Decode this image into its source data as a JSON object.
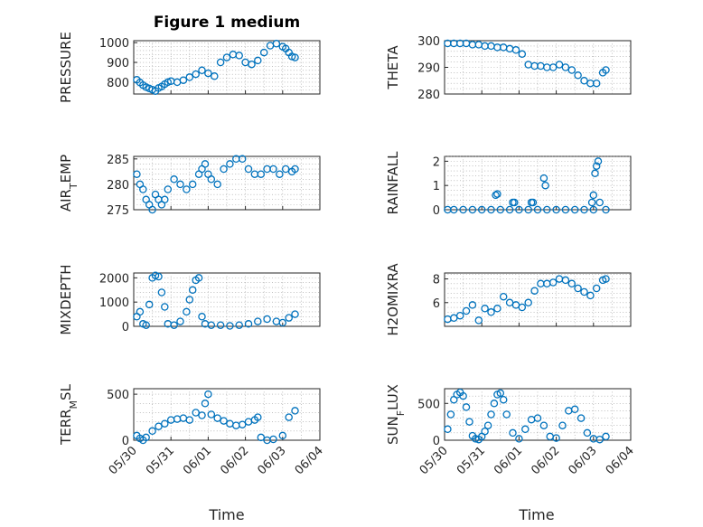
{
  "figure": {
    "title": "Figure 1 medium",
    "marker_color": "#0072BD",
    "x_ticks": [
      "05/30",
      "05/31",
      "06/01",
      "06/02",
      "06/03",
      "06/04"
    ],
    "x_label": "Time"
  },
  "chart_data": [
    {
      "type": "scatter",
      "ylabel": "PRESSURE",
      "ylim": [
        740,
        1010
      ],
      "yticks": [
        800,
        900,
        1000
      ],
      "grid": true,
      "xlim": [
        "05/30",
        "06/04"
      ],
      "x": [
        "05/30 02:00",
        "05/30 04:00",
        "05/30 06:00",
        "05/30 08:00",
        "05/30 10:00",
        "05/30 12:00",
        "05/30 14:00",
        "05/30 16:00",
        "05/30 18:00",
        "05/30 20:00",
        "05/30 22:00",
        "05/31 00:00",
        "05/31 04:00",
        "05/31 08:00",
        "05/31 12:00",
        "05/31 16:00",
        "05/31 20:00",
        "06/01 00:00",
        "06/01 04:00",
        "06/01 08:00",
        "06/01 12:00",
        "06/01 16:00",
        "06/01 20:00",
        "06/02 00:00",
        "06/02 04:00",
        "06/02 08:00",
        "06/02 12:00",
        "06/02 16:00",
        "06/02 20:00",
        "06/03 00:00",
        "06/03 02:00",
        "06/03 04:00",
        "06/03 06:00",
        "06/03 08:00"
      ],
      "y": [
        812,
        798,
        785,
        775,
        768,
        762,
        755,
        770,
        778,
        790,
        800,
        805,
        800,
        810,
        825,
        840,
        860,
        845,
        830,
        900,
        925,
        940,
        935,
        900,
        890,
        910,
        950,
        985,
        995,
        980,
        970,
        950,
        930,
        925
      ]
    },
    {
      "type": "scatter",
      "ylabel": "THETA",
      "ylim": [
        280,
        300
      ],
      "yticks": [
        280,
        290,
        300
      ],
      "grid": true,
      "xlim": [
        "05/30",
        "06/04"
      ],
      "x": [
        "05/30 02:00",
        "05/30 06:00",
        "05/30 10:00",
        "05/30 14:00",
        "05/30 18:00",
        "05/30 22:00",
        "05/31 02:00",
        "05/31 06:00",
        "05/31 10:00",
        "05/31 14:00",
        "05/31 18:00",
        "05/31 22:00",
        "06/01 02:00",
        "06/01 06:00",
        "06/01 10:00",
        "06/01 14:00",
        "06/01 18:00",
        "06/01 22:00",
        "06/02 02:00",
        "06/02 06:00",
        "06/02 10:00",
        "06/02 14:00",
        "06/02 18:00",
        "06/02 22:00",
        "06/03 02:00",
        "06/03 06:00",
        "06/03 08:00"
      ],
      "y": [
        299,
        299,
        299,
        299,
        298.5,
        298.5,
        298,
        298,
        297.5,
        297.5,
        297,
        296.5,
        295,
        291,
        290.5,
        290.5,
        290,
        290,
        291,
        290,
        289,
        287,
        285,
        284,
        284,
        288,
        289
      ]
    },
    {
      "type": "scatter",
      "ylabel": "AIR_TEMP",
      "ylim": [
        275,
        285.5
      ],
      "yticks": [
        275,
        280,
        285
      ],
      "grid": true,
      "xlim": [
        "05/30",
        "06/04"
      ],
      "x": [
        "05/30 02:00",
        "05/30 04:00",
        "05/30 06:00",
        "05/30 08:00",
        "05/30 10:00",
        "05/30 12:00",
        "05/30 14:00",
        "05/30 16:00",
        "05/30 18:00",
        "05/30 20:00",
        "05/30 22:00",
        "05/31 02:00",
        "05/31 06:00",
        "05/31 10:00",
        "05/31 14:00",
        "05/31 18:00",
        "05/31 20:00",
        "05/31 22:00",
        "06/01 00:00",
        "06/01 02:00",
        "06/01 06:00",
        "06/01 10:00",
        "06/01 14:00",
        "06/01 18:00",
        "06/01 22:00",
        "06/02 02:00",
        "06/02 06:00",
        "06/02 10:00",
        "06/02 14:00",
        "06/02 18:00",
        "06/02 22:00",
        "06/03 02:00",
        "06/03 06:00",
        "06/03 08:00"
      ],
      "y": [
        282,
        280,
        279,
        277,
        276,
        275,
        278,
        277,
        276,
        277,
        279,
        281,
        280,
        279,
        280,
        282,
        283,
        284,
        282,
        281,
        280,
        283,
        284,
        285,
        285,
        283,
        282,
        282,
        283,
        283,
        282,
        283,
        282.5,
        283
      ]
    },
    {
      "type": "scatter",
      "ylabel": "RAINFALL",
      "ylim": [
        0,
        2.2
      ],
      "yticks": [
        0,
        1,
        2
      ],
      "grid": true,
      "xlim": [
        "05/30",
        "06/04"
      ],
      "x": [
        "05/30 02:00",
        "05/30 06:00",
        "05/30 12:00",
        "05/30 18:00",
        "05/31 00:00",
        "05/31 06:00",
        "05/31 12:00",
        "05/31 18:00",
        "06/01 00:00",
        "06/01 06:00",
        "06/01 12:00",
        "06/01 18:00",
        "06/02 00:00",
        "06/02 06:00",
        "06/02 12:00",
        "06/02 18:00",
        "06/03 00:00",
        "06/03 08:00",
        "05/31 09:00",
        "05/31 10:00",
        "05/31 20:00",
        "05/31 21:00",
        "06/01 08:00",
        "06/01 09:00",
        "06/01 16:00",
        "06/01 17:00",
        "06/02 23:00",
        "06/03 00:00",
        "06/03 01:00",
        "06/03 02:00",
        "06/03 03:00",
        "06/03 04:00"
      ],
      "y": [
        0,
        0,
        0,
        0,
        0,
        0,
        0,
        0,
        0,
        0,
        0,
        0,
        0,
        0,
        0,
        0,
        0,
        0,
        0.6,
        0.65,
        0.3,
        0.3,
        0.3,
        0.3,
        1.3,
        1.0,
        0.3,
        0.6,
        1.5,
        1.8,
        2.0,
        0.3
      ]
    },
    {
      "type": "scatter",
      "ylabel": "MIXDEPTH",
      "ylim": [
        0,
        2200
      ],
      "yticks": [
        0,
        1000,
        2000
      ],
      "grid": true,
      "xlim": [
        "05/30",
        "06/04"
      ],
      "x": [
        "05/30 02:00",
        "05/30 04:00",
        "05/30 06:00",
        "05/30 08:00",
        "05/30 10:00",
        "05/30 12:00",
        "05/30 14:00",
        "05/30 16:00",
        "05/30 18:00",
        "05/30 20:00",
        "05/30 22:00",
        "05/31 02:00",
        "05/31 06:00",
        "05/31 10:00",
        "05/31 12:00",
        "05/31 14:00",
        "05/31 16:00",
        "05/31 18:00",
        "05/31 20:00",
        "05/31 22:00",
        "06/01 02:00",
        "06/01 08:00",
        "06/01 14:00",
        "06/01 20:00",
        "06/02 02:00",
        "06/02 08:00",
        "06/02 14:00",
        "06/02 20:00",
        "06/03 00:00",
        "06/03 04:00",
        "06/03 08:00"
      ],
      "y": [
        400,
        600,
        100,
        50,
        900,
        2000,
        2100,
        2050,
        1400,
        800,
        100,
        50,
        200,
        600,
        1100,
        1500,
        1900,
        2000,
        400,
        100,
        50,
        50,
        20,
        50,
        100,
        200,
        300,
        200,
        150,
        350,
        500
      ]
    },
    {
      "type": "scatter",
      "ylabel": "H2OMIXRA",
      "ylim": [
        4,
        8.5
      ],
      "yticks": [
        6,
        8
      ],
      "grid": true,
      "xlim": [
        "05/30",
        "06/04"
      ],
      "x": [
        "05/30 02:00",
        "05/30 06:00",
        "05/30 10:00",
        "05/30 14:00",
        "05/30 18:00",
        "05/30 22:00",
        "05/31 02:00",
        "05/31 06:00",
        "05/31 10:00",
        "05/31 14:00",
        "05/31 18:00",
        "05/31 22:00",
        "06/01 02:00",
        "06/01 06:00",
        "06/01 10:00",
        "06/01 14:00",
        "06/01 18:00",
        "06/01 22:00",
        "06/02 02:00",
        "06/02 06:00",
        "06/02 10:00",
        "06/02 14:00",
        "06/02 18:00",
        "06/02 22:00",
        "06/03 02:00",
        "06/03 06:00",
        "06/03 08:00"
      ],
      "y": [
        4.6,
        4.7,
        4.9,
        5.3,
        5.8,
        4.5,
        5.5,
        5.2,
        5.5,
        6.5,
        6.0,
        5.8,
        5.6,
        6.0,
        7.0,
        7.6,
        7.6,
        7.7,
        8.0,
        7.9,
        7.6,
        7.2,
        6.9,
        6.6,
        7.2,
        7.9,
        8.0
      ]
    },
    {
      "type": "scatter",
      "ylabel": "TERR_MSL",
      "ylim": [
        0,
        560
      ],
      "yticks": [
        0,
        500
      ],
      "grid": true,
      "xlim": [
        "05/30",
        "06/04"
      ],
      "x": [
        "05/30 02:00",
        "05/30 04:00",
        "05/30 06:00",
        "05/30 08:00",
        "05/30 12:00",
        "05/30 16:00",
        "05/30 20:00",
        "05/31 00:00",
        "05/31 04:00",
        "05/31 08:00",
        "05/31 12:00",
        "05/31 16:00",
        "05/31 20:00",
        "05/31 22:00",
        "06/01 00:00",
        "06/01 02:00",
        "06/01 06:00",
        "06/01 10:00",
        "06/01 14:00",
        "06/01 18:00",
        "06/01 22:00",
        "06/02 02:00",
        "06/02 06:00",
        "06/02 08:00",
        "06/02 10:00",
        "06/02 14:00",
        "06/02 18:00",
        "06/03 00:00",
        "06/03 04:00",
        "06/03 08:00"
      ],
      "y": [
        50,
        20,
        0,
        30,
        100,
        150,
        180,
        220,
        230,
        240,
        220,
        300,
        270,
        400,
        500,
        280,
        240,
        210,
        180,
        160,
        170,
        200,
        220,
        250,
        30,
        0,
        10,
        50,
        250,
        320
      ]
    },
    {
      "type": "scatter",
      "ylabel": "SUN_FLUX",
      "ylim": [
        0,
        700
      ],
      "yticks": [
        0,
        500
      ],
      "grid": true,
      "xlim": [
        "05/30",
        "06/04"
      ],
      "x": [
        "05/30 02:00",
        "05/30 04:00",
        "05/30 06:00",
        "05/30 08:00",
        "05/30 10:00",
        "05/30 12:00",
        "05/30 14:00",
        "05/30 16:00",
        "05/30 18:00",
        "05/30 20:00",
        "05/30 22:00",
        "05/31 00:00",
        "05/31 02:00",
        "05/31 04:00",
        "05/31 06:00",
        "05/31 08:00",
        "05/31 10:00",
        "05/31 12:00",
        "05/31 14:00",
        "05/31 16:00",
        "05/31 20:00",
        "06/01 00:00",
        "06/01 04:00",
        "06/01 08:00",
        "06/01 12:00",
        "06/01 16:00",
        "06/01 20:00",
        "06/02 00:00",
        "06/02 04:00",
        "06/02 08:00",
        "06/02 12:00",
        "06/02 16:00",
        "06/02 20:00",
        "06/03 00:00",
        "06/03 04:00",
        "06/03 08:00"
      ],
      "y": [
        150,
        350,
        550,
        620,
        650,
        600,
        450,
        250,
        60,
        20,
        10,
        50,
        120,
        200,
        350,
        500,
        620,
        640,
        550,
        350,
        100,
        20,
        150,
        280,
        300,
        200,
        50,
        30,
        200,
        400,
        420,
        300,
        100,
        20,
        10,
        50
      ]
    }
  ]
}
